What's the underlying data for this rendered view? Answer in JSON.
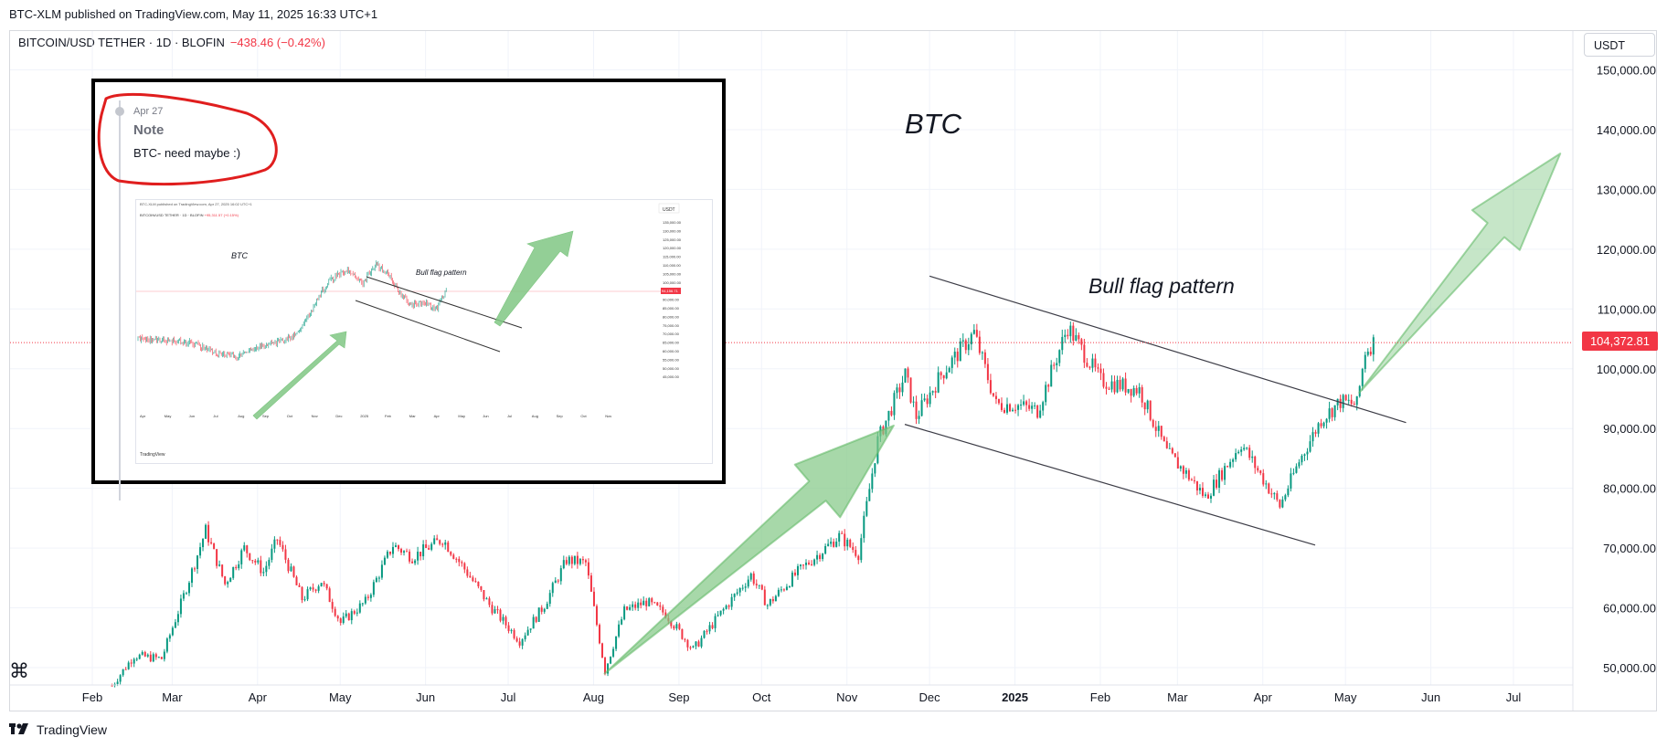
{
  "header": {
    "published": "BTC-XLM published on TradingView.com, May 11, 2025 16:33 UTC+1",
    "symbol": "BITCOIN/USD TETHER · 1D · BLOFIN",
    "change": "−438.46 (−0.42%)",
    "currency": "USDT"
  },
  "price_label": "104,372.81",
  "brand": "TradingView",
  "annotations": {
    "main": "BTC",
    "pattern": "Bull flag pattern"
  },
  "note": {
    "date": "Apr 27",
    "title": "Note",
    "text": "BTC- need maybe :)"
  },
  "inset_chart": {
    "published": "BTC-XLM published on TradingView.com, Apr 27, 2025 16:02 UTC+1",
    "symbol": "BITCOIN/USD TETHER · 1D · BLOFIN",
    "change": "+95,311.57 (+0.15%)",
    "currency": "USDT",
    "label_btc": "BTC",
    "label_pattern": "Bull flag pattern",
    "price_label": "94,156.71",
    "brand": "TradingView",
    "months": [
      "Apr",
      "May",
      "Jun",
      "Jul",
      "Aug",
      "Sep",
      "Oct",
      "Nov",
      "Dec",
      "2025",
      "Feb",
      "Mar",
      "Apr",
      "May",
      "Jun",
      "Jul",
      "Aug",
      "Sep",
      "Oct",
      "Nov"
    ],
    "y_ticks": [
      "135,000.00",
      "130,000.00",
      "125,000.00",
      "120,000.00",
      "115,000.00",
      "110,000.00",
      "105,000.00",
      "100,000.00",
      "95,000.00",
      "90,000.00",
      "85,000.00",
      "80,000.00",
      "75,000.00",
      "70,000.00",
      "65,000.00",
      "60,000.00",
      "55,000.00",
      "50,000.00",
      "45,000.00"
    ]
  },
  "colors": {
    "up": "#089981",
    "down": "#f23645",
    "arrow": "#81c784",
    "note_circle": "#e01e1e",
    "current_price": "#f23645"
  },
  "chart_data": {
    "type": "candlestick",
    "title": "BITCOIN/USD TETHER · 1D · BLOFIN",
    "ylabel": "USDT",
    "ylim": [
      47000,
      153000
    ],
    "yticks": [
      50000,
      60000,
      70000,
      80000,
      90000,
      100000,
      110000,
      120000,
      130000,
      140000,
      150000
    ],
    "ytick_labels": [
      "50,000.00",
      "60,000.00",
      "70,000.00",
      "80,000.00",
      "90,000.00",
      "100,000.00",
      "110,000.00",
      "120,000.00",
      "130,000.00",
      "140,000.00",
      "150,000.00"
    ],
    "xlabels": [
      "Feb",
      "Mar",
      "Apr",
      "May",
      "Jun",
      "Jul",
      "Aug",
      "Sep",
      "Oct",
      "Nov",
      "Dec",
      "2025",
      "Feb",
      "Mar",
      "Apr",
      "May",
      "Jun",
      "Jul"
    ],
    "last_price": 104372.81,
    "close_path": [
      {
        "date": "2024-02-08",
        "close": 47000
      },
      {
        "date": "2024-02-16",
        "close": 52000
      },
      {
        "date": "2024-02-26",
        "close": 51500
      },
      {
        "date": "2024-03-05",
        "close": 62000
      },
      {
        "date": "2024-03-13",
        "close": 73000
      },
      {
        "date": "2024-03-20",
        "close": 64000
      },
      {
        "date": "2024-03-27",
        "close": 70000
      },
      {
        "date": "2024-04-03",
        "close": 66000
      },
      {
        "date": "2024-04-08",
        "close": 71500
      },
      {
        "date": "2024-04-17",
        "close": 61500
      },
      {
        "date": "2024-04-24",
        "close": 64500
      },
      {
        "date": "2024-05-01",
        "close": 57500
      },
      {
        "date": "2024-05-10",
        "close": 61000
      },
      {
        "date": "2024-05-20",
        "close": 70500
      },
      {
        "date": "2024-05-27",
        "close": 68500
      },
      {
        "date": "2024-06-07",
        "close": 71500
      },
      {
        "date": "2024-06-15",
        "close": 66500
      },
      {
        "date": "2024-06-24",
        "close": 60500
      },
      {
        "date": "2024-07-05",
        "close": 54500
      },
      {
        "date": "2024-07-14",
        "close": 60500
      },
      {
        "date": "2024-07-22",
        "close": 68000
      },
      {
        "date": "2024-07-29",
        "close": 67500
      },
      {
        "date": "2024-08-05",
        "close": 49500
      },
      {
        "date": "2024-08-12",
        "close": 59500
      },
      {
        "date": "2024-08-20",
        "close": 61000
      },
      {
        "date": "2024-08-27",
        "close": 59000
      },
      {
        "date": "2024-09-06",
        "close": 53000
      },
      {
        "date": "2024-09-15",
        "close": 58500
      },
      {
        "date": "2024-09-27",
        "close": 65500
      },
      {
        "date": "2024-10-03",
        "close": 60500
      },
      {
        "date": "2024-10-14",
        "close": 66000
      },
      {
        "date": "2024-10-29",
        "close": 72000
      },
      {
        "date": "2024-11-05",
        "close": 69000
      },
      {
        "date": "2024-11-12",
        "close": 88000
      },
      {
        "date": "2024-11-22",
        "close": 99000
      },
      {
        "date": "2024-11-26",
        "close": 92000
      },
      {
        "date": "2024-12-05",
        "close": 99000
      },
      {
        "date": "2024-12-17",
        "close": 106000
      },
      {
        "date": "2024-12-25",
        "close": 94000
      },
      {
        "date": "2025-01-01",
        "close": 94000
      },
      {
        "date": "2025-01-09",
        "close": 93000
      },
      {
        "date": "2025-01-20",
        "close": 107000
      },
      {
        "date": "2025-02-01",
        "close": 98000
      },
      {
        "date": "2025-02-15",
        "close": 96500
      },
      {
        "date": "2025-02-25",
        "close": 86000
      },
      {
        "date": "2025-03-04",
        "close": 82500
      },
      {
        "date": "2025-03-11",
        "close": 78500
      },
      {
        "date": "2025-03-24",
        "close": 87500
      },
      {
        "date": "2025-04-07",
        "close": 77000
      },
      {
        "date": "2025-04-14",
        "close": 84500
      },
      {
        "date": "2025-04-22",
        "close": 91500
      },
      {
        "date": "2025-04-29",
        "close": 94500
      },
      {
        "date": "2025-05-05",
        "close": 94000
      },
      {
        "date": "2025-05-08",
        "close": 103000
      },
      {
        "date": "2025-05-11",
        "close": 104372.81
      }
    ],
    "trendlines": [
      {
        "name": "flag-upper",
        "from": {
          "date": "2024-12-01",
          "value": 115500
        },
        "to": {
          "date": "2025-05-23",
          "value": 91000
        }
      },
      {
        "name": "flag-lower",
        "from": {
          "date": "2024-11-22",
          "value": 90700
        },
        "to": {
          "date": "2025-04-20",
          "value": 70500
        }
      }
    ],
    "arrows": [
      {
        "from": {
          "date": "2024-08-05",
          "value": 49000
        },
        "to": {
          "date": "2024-11-18",
          "value": 90500
        }
      },
      {
        "from": {
          "date": "2025-05-06",
          "value": 96000
        },
        "to": {
          "date": "2025-07-18",
          "value": 136000
        }
      }
    ]
  }
}
